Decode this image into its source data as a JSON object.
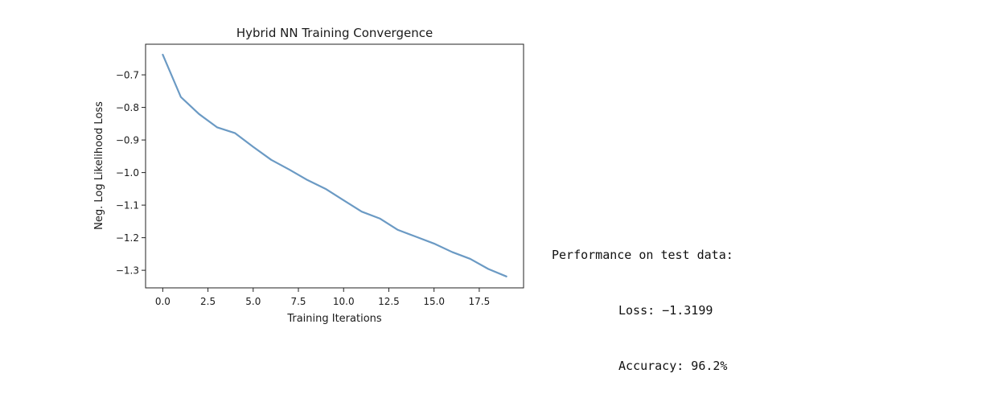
{
  "chart_data": {
    "type": "line",
    "title": "Hybrid NN Training Convergence",
    "xlabel": "Training Iterations",
    "ylabel": "Neg. Log Likelihood Loss",
    "xlim": [
      -0.95,
      19.95
    ],
    "ylim": [
      -1.354,
      -0.606
    ],
    "xticks": [
      0.0,
      2.5,
      5.0,
      7.5,
      10.0,
      12.5,
      15.0,
      17.5
    ],
    "xtick_labels": [
      "0.0",
      "2.5",
      "5.0",
      "7.5",
      "10.0",
      "12.5",
      "15.0",
      "17.5"
    ],
    "yticks": [
      -0.7,
      -0.8,
      -0.9,
      -1.0,
      -1.1,
      -1.2,
      -1.3
    ],
    "ytick_labels": [
      "−0.7",
      "−0.8",
      "−0.9",
      "−1.0",
      "−1.1",
      "−1.2",
      "−1.3"
    ],
    "grid": false,
    "series": [
      {
        "color": "#6b9ac4",
        "x": [
          0,
          1,
          2,
          3,
          4,
          5,
          6,
          7,
          8,
          9,
          10,
          11,
          12,
          13,
          14,
          15,
          16,
          17,
          18,
          19
        ],
        "y": [
          -0.638,
          -0.768,
          -0.82,
          -0.861,
          -0.879,
          -0.921,
          -0.961,
          -0.991,
          -1.023,
          -1.05,
          -1.085,
          -1.12,
          -1.141,
          -1.176,
          -1.197,
          -1.218,
          -1.244,
          -1.265,
          -1.296,
          -1.319
        ]
      }
    ]
  },
  "output": {
    "heading": "Performance on test data:",
    "loss_line": "Loss: −1.3199",
    "accuracy_line": "Accuracy: 96.2%"
  }
}
